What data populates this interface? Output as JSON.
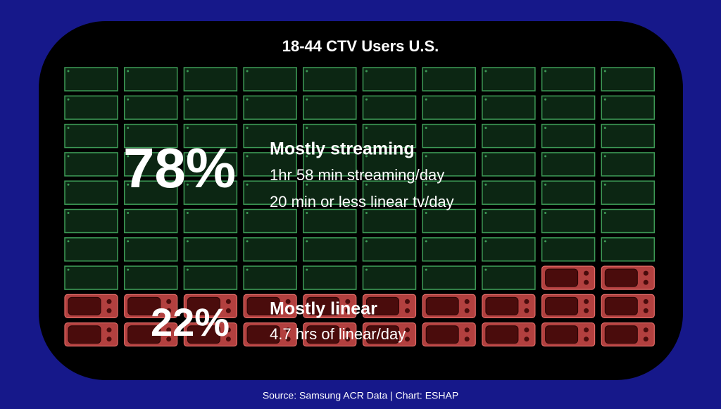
{
  "chart_data": {
    "type": "waffle",
    "title": "18-44 CTV Users U.S.",
    "categories": [
      "Mostly streaming",
      "Mostly linear"
    ],
    "values": [
      78,
      22
    ],
    "value_labels": [
      "78%",
      "22%"
    ],
    "details": [
      [
        "1hr 58 min streaming/day",
        "20 min or less linear tv/day"
      ],
      [
        "4.7 hrs of linear/day"
      ]
    ],
    "colors": [
      "#3d9a56",
      "#b2403f"
    ],
    "source": "Source: Samsung ACR Data | Chart: ESHAP"
  }
}
